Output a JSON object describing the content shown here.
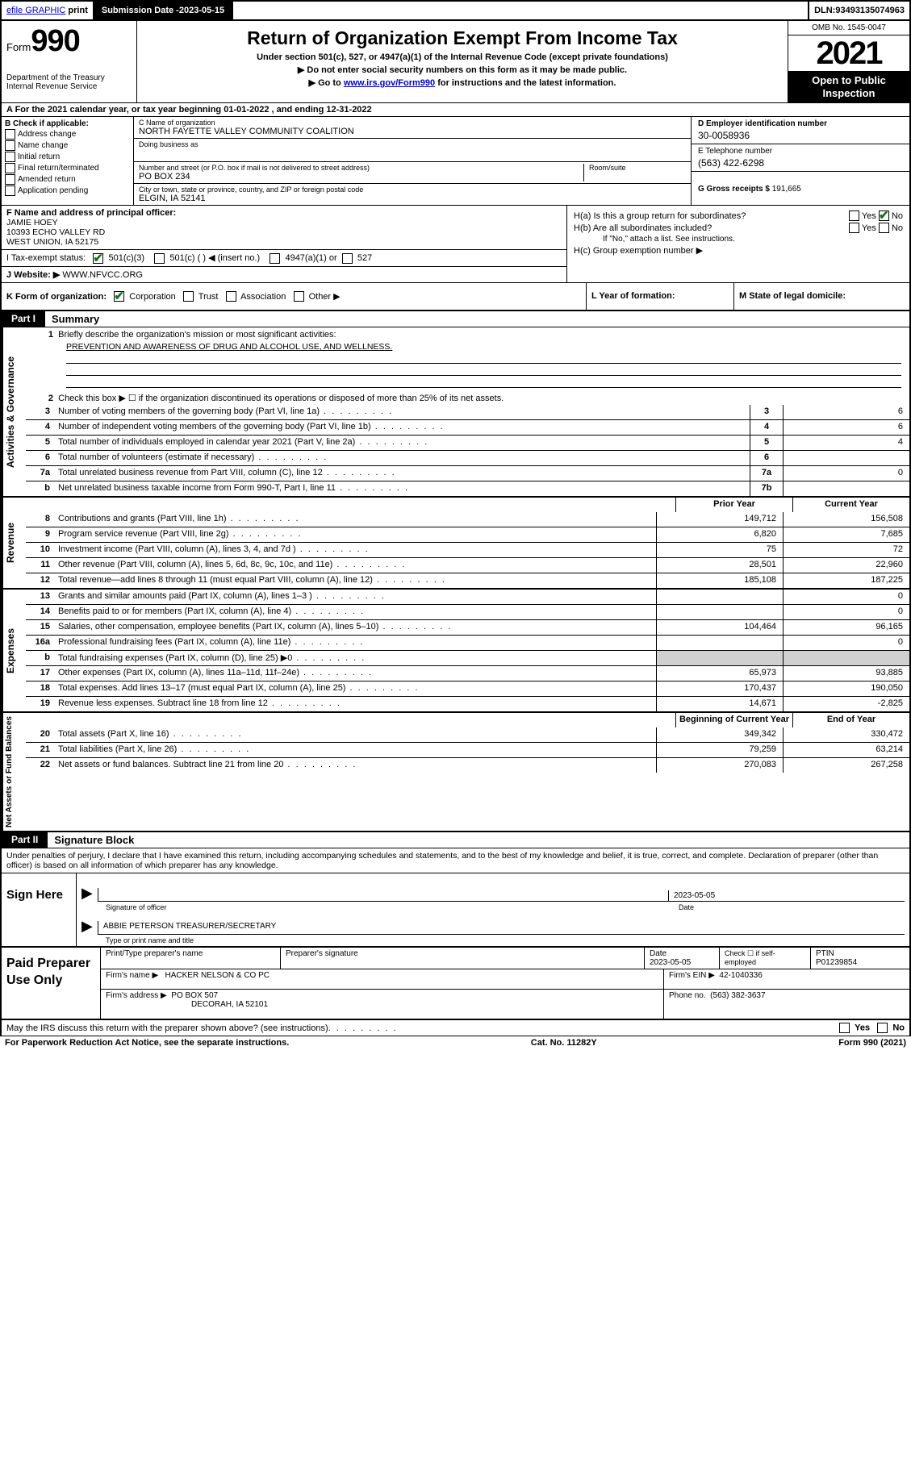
{
  "top_bar": {
    "efile": "efile GRAPHIC",
    "print": "print",
    "submission_label": "Submission Date - ",
    "submission_date": "2023-05-15",
    "dln_label": "DLN: ",
    "dln": "93493135074963"
  },
  "header": {
    "form_word": "Form",
    "form_num": "990",
    "title": "Return of Organization Exempt From Income Tax",
    "subtitle1": "Under section 501(c), 527, or 4947(a)(1) of the Internal Revenue Code (except private foundations)",
    "subtitle2": "▶ Do not enter social security numbers on this form as it may be made public.",
    "subtitle3_pre": "▶ Go to ",
    "subtitle3_link": "www.irs.gov/Form990",
    "subtitle3_post": " for instructions and the latest information.",
    "dept": "Department of the Treasury\nInternal Revenue Service",
    "omb": "OMB No. 1545-0047",
    "year": "2021",
    "open": "Open to Public Inspection"
  },
  "row_a": {
    "text_pre": "A For the 2021 calendar year, or tax year beginning ",
    "beg": "01-01-2022",
    "mid": "   , and ending ",
    "end": "12-31-2022"
  },
  "col_b": {
    "title": "B Check if applicable:",
    "items": [
      "Address change",
      "Name change",
      "Initial return",
      "Final return/terminated",
      "Amended return",
      "Application pending"
    ]
  },
  "col_c": {
    "name_label": "C Name of organization",
    "name": "NORTH FAYETTE VALLEY COMMUNITY COALITION",
    "dba_label": "Doing business as",
    "street_label": "Number and street (or P.O. box if mail is not delivered to street address)",
    "street": "PO BOX 234",
    "room_label": "Room/suite",
    "city_label": "City or town, state or province, country, and ZIP or foreign postal code",
    "city": "ELGIN, IA  52141"
  },
  "col_d": {
    "d_label": "D Employer identification number",
    "d_val": "30-0058936",
    "e_label": "E Telephone number",
    "e_val": "(563) 422-6298",
    "g_label": "G Gross receipts $ ",
    "g_val": "191,665"
  },
  "row_f": {
    "label": "F  Name and address of principal officer:",
    "name": "JAMIE HOEY",
    "addr1": "10393 ECHO VALLEY RD",
    "addr2": "WEST UNION, IA  52175"
  },
  "row_i": {
    "label": "I   Tax-exempt status:",
    "opt1": "501(c)(3)",
    "opt2": "501(c) (  ) ◀ (insert no.)",
    "opt3": "4947(a)(1) or",
    "opt4": "527"
  },
  "row_j": {
    "label": "J   Website: ▶ ",
    "val": "WWW.NFVCC.ORG"
  },
  "col_h": {
    "ha": "H(a)  Is this a group return for subordinates?",
    "hb": "H(b)  Are all subordinates included?",
    "hb_note": "If \"No,\" attach a list. See instructions.",
    "hc": "H(c)  Group exemption number ▶",
    "yes": "Yes",
    "no": "No"
  },
  "row_k": {
    "label": "K Form of organization:",
    "opts": [
      "Corporation",
      "Trust",
      "Association",
      "Other ▶"
    ],
    "l_label": "L Year of formation:",
    "m_label": "M State of legal domicile:"
  },
  "part1": {
    "tag": "Part I",
    "title": "Summary",
    "l1": "Briefly describe the organization's mission or most significant activities:",
    "mission": "PREVENTION AND AWARENESS OF DRUG AND ALCOHOL USE, AND WELLNESS.",
    "l2": "Check this box ▶ ☐  if the organization discontinued its operations or disposed of more than 25% of its net assets.",
    "vert1": "Activities & Governance",
    "vert2": "Revenue",
    "vert3": "Expenses",
    "vert4": "Net Assets or Fund Balances",
    "prior": "Prior Year",
    "current": "Current Year",
    "begin": "Beginning of Current Year",
    "endyr": "End of Year"
  },
  "lines_gov": [
    {
      "n": "3",
      "t": "Number of voting members of the governing body (Part VI, line 1a)",
      "box": "3",
      "v": "6"
    },
    {
      "n": "4",
      "t": "Number of independent voting members of the governing body (Part VI, line 1b)",
      "box": "4",
      "v": "6"
    },
    {
      "n": "5",
      "t": "Total number of individuals employed in calendar year 2021 (Part V, line 2a)",
      "box": "5",
      "v": "4"
    },
    {
      "n": "6",
      "t": "Total number of volunteers (estimate if necessary)",
      "box": "6",
      "v": ""
    },
    {
      "n": "7a",
      "t": "Total unrelated business revenue from Part VIII, column (C), line 12",
      "box": "7a",
      "v": "0"
    },
    {
      "n": "b",
      "t": "Net unrelated business taxable income from Form 990-T, Part I, line 11",
      "box": "7b",
      "v": ""
    }
  ],
  "lines_rev": [
    {
      "n": "8",
      "t": "Contributions and grants (Part VIII, line 1h)",
      "p": "149,712",
      "c": "156,508"
    },
    {
      "n": "9",
      "t": "Program service revenue (Part VIII, line 2g)",
      "p": "6,820",
      "c": "7,685"
    },
    {
      "n": "10",
      "t": "Investment income (Part VIII, column (A), lines 3, 4, and 7d )",
      "p": "75",
      "c": "72"
    },
    {
      "n": "11",
      "t": "Other revenue (Part VIII, column (A), lines 5, 6d, 8c, 9c, 10c, and 11e)",
      "p": "28,501",
      "c": "22,960"
    },
    {
      "n": "12",
      "t": "Total revenue—add lines 8 through 11 (must equal Part VIII, column (A), line 12)",
      "p": "185,108",
      "c": "187,225"
    }
  ],
  "lines_exp": [
    {
      "n": "13",
      "t": "Grants and similar amounts paid (Part IX, column (A), lines 1–3 )",
      "p": "",
      "c": "0"
    },
    {
      "n": "14",
      "t": "Benefits paid to or for members (Part IX, column (A), line 4)",
      "p": "",
      "c": "0"
    },
    {
      "n": "15",
      "t": "Salaries, other compensation, employee benefits (Part IX, column (A), lines 5–10)",
      "p": "104,464",
      "c": "96,165"
    },
    {
      "n": "16a",
      "t": "Professional fundraising fees (Part IX, column (A), line 11e)",
      "p": "",
      "c": "0"
    },
    {
      "n": "b",
      "t": "Total fundraising expenses (Part IX, column (D), line 25) ▶0",
      "p": "SHADE",
      "c": "SHADE"
    },
    {
      "n": "17",
      "t": "Other expenses (Part IX, column (A), lines 11a–11d, 11f–24e)",
      "p": "65,973",
      "c": "93,885"
    },
    {
      "n": "18",
      "t": "Total expenses. Add lines 13–17 (must equal Part IX, column (A), line 25)",
      "p": "170,437",
      "c": "190,050"
    },
    {
      "n": "19",
      "t": "Revenue less expenses. Subtract line 18 from line 12",
      "p": "14,671",
      "c": "-2,825"
    }
  ],
  "lines_net": [
    {
      "n": "20",
      "t": "Total assets (Part X, line 16)",
      "p": "349,342",
      "c": "330,472"
    },
    {
      "n": "21",
      "t": "Total liabilities (Part X, line 26)",
      "p": "79,259",
      "c": "63,214"
    },
    {
      "n": "22",
      "t": "Net assets or fund balances. Subtract line 21 from line 20",
      "p": "270,083",
      "c": "267,258"
    }
  ],
  "part2": {
    "tag": "Part II",
    "title": "Signature Block",
    "penalty": "Under penalties of perjury, I declare that I have examined this return, including accompanying schedules and statements, and to the best of my knowledge and belief, it is true, correct, and complete. Declaration of preparer (other than officer) is based on all information of which preparer has any knowledge.",
    "sign_here": "Sign Here",
    "sig_of_officer": "Signature of officer",
    "date_label": "Date",
    "sig_date": "2023-05-05",
    "officer_name": "ABBIE PETERSON  TREASURER/SECRETARY",
    "type_name": "Type or print name and title"
  },
  "paid": {
    "title": "Paid Preparer Use Only",
    "h1": "Print/Type preparer's name",
    "h2": "Preparer's signature",
    "h3": "Date",
    "date": "2023-05-05",
    "h4_pre": "Check ☐ if self-employed",
    "h5": "PTIN",
    "ptin": "P01239854",
    "firm_name_l": "Firm's name    ▶",
    "firm_name": "HACKER NELSON & CO PC",
    "firm_ein_l": "Firm's EIN ▶",
    "firm_ein": "42-1040336",
    "firm_addr_l": "Firm's address ▶",
    "firm_addr1": "PO BOX 507",
    "firm_addr2": "DECORAH, IA  52101",
    "phone_l": "Phone no.",
    "phone": "(563) 382-3637"
  },
  "discuss": "May the IRS discuss this return with the preparer shown above? (see instructions)",
  "footer": {
    "left": "For Paperwork Reduction Act Notice, see the separate instructions.",
    "mid": "Cat. No. 11282Y",
    "right_pre": "Form ",
    "right_b": "990",
    "right_post": " (2021)"
  }
}
